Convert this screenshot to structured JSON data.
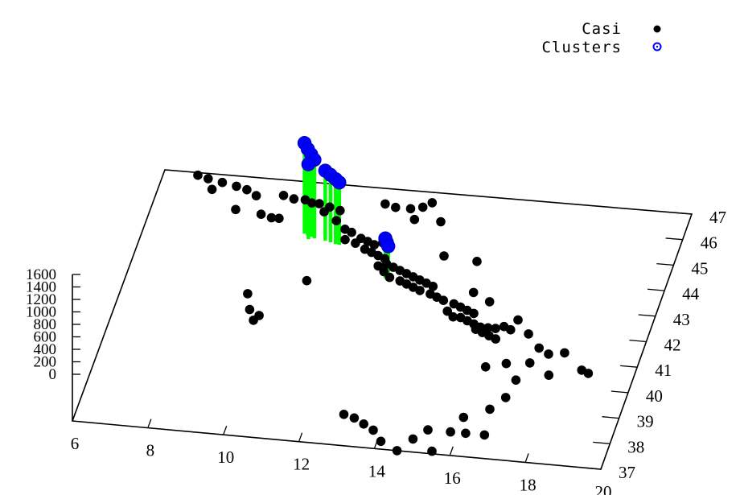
{
  "chart_data": {
    "type": "scatter3d",
    "title": "",
    "xlabel": "",
    "ylabel": "",
    "zlabel": "",
    "xlim": [
      6,
      20
    ],
    "ylim": [
      37,
      47
    ],
    "zlim": [
      0,
      1600
    ],
    "x_ticks": [
      "6",
      "8",
      "10",
      "12",
      "14",
      "16",
      "18",
      "20"
    ],
    "y_ticks": [
      "37",
      "38",
      "39",
      "40",
      "41",
      "42",
      "43",
      "44",
      "45",
      "46",
      "47"
    ],
    "z_ticks": [
      "0",
      "200",
      "400",
      "600",
      "800",
      "1000",
      "1200",
      "1400",
      "1600"
    ],
    "legend_position": "top-right",
    "colors": {
      "casi": "#000000",
      "clusters": "#0000ff",
      "impulse": "#00ff00"
    },
    "legend": [
      {
        "label": "Casi",
        "marker": "filled-circle",
        "color": "#000000"
      },
      {
        "label": "Clusters",
        "marker": "open-circle",
        "color": "#0000ff"
      }
    ],
    "series": [
      {
        "name": "Casi",
        "points": [
          [
            6.9,
            46.9
          ],
          [
            7.2,
            46.8
          ],
          [
            7.6,
            46.7
          ],
          [
            8.0,
            46.6
          ],
          [
            8.3,
            46.5
          ],
          [
            7.4,
            46.4
          ],
          [
            8.6,
            46.3
          ],
          [
            9.3,
            46.4
          ],
          [
            9.6,
            46.3
          ],
          [
            9.9,
            46.3
          ],
          [
            10.1,
            46.2
          ],
          [
            10.3,
            46.2
          ],
          [
            10.6,
            46.1
          ],
          [
            10.9,
            46.0
          ],
          [
            12.0,
            46.4
          ],
          [
            12.3,
            46.3
          ],
          [
            12.7,
            46.3
          ],
          [
            13.0,
            46.4
          ],
          [
            8.9,
            45.6
          ],
          [
            9.2,
            45.5
          ],
          [
            9.4,
            45.5
          ],
          [
            10.9,
            45.6
          ],
          [
            11.2,
            45.3
          ],
          [
            11.4,
            45.2
          ],
          [
            11.7,
            45.0
          ],
          [
            11.9,
            44.9
          ],
          [
            12.1,
            44.8
          ],
          [
            12.3,
            44.9
          ],
          [
            11.3,
            44.9
          ],
          [
            11.6,
            44.8
          ],
          [
            11.9,
            44.6
          ],
          [
            12.1,
            44.5
          ],
          [
            12.3,
            44.4
          ],
          [
            12.5,
            44.3
          ],
          [
            12.6,
            44.1
          ],
          [
            12.8,
            44.0
          ],
          [
            13.0,
            43.9
          ],
          [
            13.2,
            43.8
          ],
          [
            13.4,
            43.7
          ],
          [
            13.6,
            43.6
          ],
          [
            13.8,
            43.5
          ],
          [
            14.0,
            43.4
          ],
          [
            12.4,
            44.0
          ],
          [
            12.6,
            43.8
          ],
          [
            12.8,
            43.6
          ],
          [
            13.1,
            43.5
          ],
          [
            13.3,
            43.4
          ],
          [
            13.5,
            43.3
          ],
          [
            13.7,
            43.2
          ],
          [
            14.0,
            43.1
          ],
          [
            14.2,
            43.0
          ],
          [
            14.4,
            42.9
          ],
          [
            14.7,
            42.8
          ],
          [
            14.9,
            42.7
          ],
          [
            15.1,
            42.6
          ],
          [
            15.3,
            42.5
          ],
          [
            15.0,
            42.3
          ],
          [
            15.2,
            42.2
          ],
          [
            15.4,
            42.1
          ],
          [
            15.6,
            42.0
          ],
          [
            15.8,
            42.0
          ],
          [
            16.0,
            42.0
          ],
          [
            16.2,
            42.1
          ],
          [
            16.4,
            42.0
          ],
          [
            15.5,
            41.9
          ],
          [
            15.7,
            41.8
          ],
          [
            15.9,
            41.7
          ],
          [
            16.1,
            41.6
          ],
          [
            14.6,
            42.5
          ],
          [
            14.8,
            42.3
          ],
          [
            15.1,
            43.3
          ],
          [
            15.6,
            43.0
          ],
          [
            16.5,
            42.4
          ],
          [
            16.9,
            41.9
          ],
          [
            17.3,
            41.4
          ],
          [
            17.6,
            41.2
          ],
          [
            18.0,
            41.3
          ],
          [
            18.6,
            40.7
          ],
          [
            18.8,
            40.6
          ],
          [
            17.2,
            40.8
          ],
          [
            17.8,
            40.4
          ],
          [
            16.1,
            40.5
          ],
          [
            16.6,
            40.7
          ],
          [
            17.0,
            40.1
          ],
          [
            16.9,
            39.4
          ],
          [
            16.6,
            38.9
          ],
          [
            16.0,
            38.5
          ],
          [
            16.7,
            37.9
          ],
          [
            16.2,
            37.9
          ],
          [
            15.8,
            37.9
          ],
          [
            15.2,
            37.9
          ],
          [
            14.9,
            37.5
          ],
          [
            15.5,
            37.1
          ],
          [
            14.6,
            37.0
          ],
          [
            13.8,
            37.7
          ],
          [
            14.1,
            37.3
          ],
          [
            13.5,
            37.9
          ],
          [
            13.2,
            38.1
          ],
          [
            12.9,
            38.2
          ],
          [
            9.3,
            42.5
          ],
          [
            9.5,
            41.9
          ],
          [
            9.8,
            41.7
          ],
          [
            9.7,
            41.5
          ],
          [
            10.7,
            43.2
          ],
          [
            12.9,
            45.9
          ],
          [
            13.2,
            46.6
          ],
          [
            13.6,
            45.9
          ],
          [
            14.0,
            44.6
          ],
          [
            14.9,
            44.5
          ],
          [
            10.5,
            45.9
          ],
          [
            8.2,
            45.7
          ]
        ]
      },
      {
        "name": "Clusters",
        "points": [
          [
            10.2,
            45.0,
            1450
          ],
          [
            10.3,
            44.95,
            1380
          ],
          [
            10.4,
            44.9,
            1320
          ],
          [
            10.5,
            44.85,
            1260
          ],
          [
            10.35,
            44.8,
            1200
          ],
          [
            10.8,
            44.8,
            1120
          ],
          [
            10.95,
            44.75,
            1080
          ],
          [
            11.1,
            44.7,
            1040
          ],
          [
            11.2,
            44.68,
            1000
          ],
          [
            12.7,
            43.55,
            640
          ],
          [
            12.75,
            43.5,
            600
          ],
          [
            12.8,
            43.45,
            560
          ]
        ]
      }
    ]
  }
}
